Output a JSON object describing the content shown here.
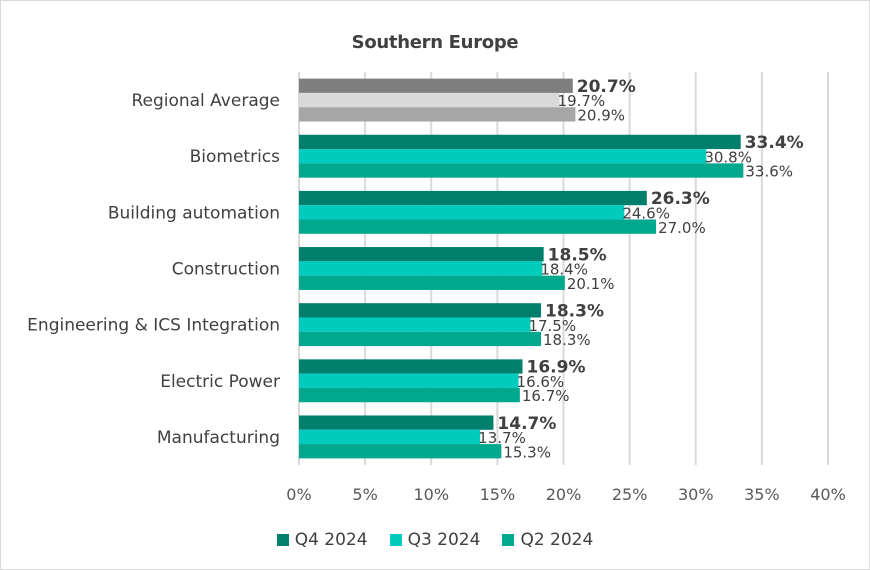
{
  "chart_data": {
    "type": "bar",
    "orientation": "horizontal",
    "title": "Southern Europe",
    "xlabel": "",
    "ylabel": "",
    "xlim": [
      0,
      40
    ],
    "x_ticks": [
      "0%",
      "5%",
      "10%",
      "15%",
      "20%",
      "25%",
      "30%",
      "35%",
      "40%"
    ],
    "x_tick_values": [
      0,
      5,
      10,
      15,
      20,
      25,
      30,
      35,
      40
    ],
    "grid": true,
    "legend_position": "bottom",
    "categories": [
      "Regional Average",
      "Biometrics",
      "Building automation",
      "Construction",
      "Engineering & ICS Integration",
      "Electric Power",
      "Manufacturing"
    ],
    "series": [
      {
        "name": "Q4 2024",
        "color": "#007F6D",
        "highlight_color": "#7F7F7F",
        "values": [
          20.7,
          33.4,
          26.3,
          18.5,
          18.3,
          16.9,
          14.7
        ],
        "labels": [
          "20.7%",
          "33.4%",
          "26.3%",
          "18.5%",
          "18.3%",
          "16.9%",
          "14.7%"
        ]
      },
      {
        "name": "Q3 2024",
        "color": "#00CCBE",
        "highlight_color": "#D9D9D9",
        "values": [
          19.7,
          30.8,
          24.6,
          18.4,
          17.5,
          16.6,
          13.7
        ],
        "labels": [
          "19.7%",
          "30.8%",
          "24.6%",
          "18.4%",
          "17.5%",
          "16.6%",
          "13.7%"
        ]
      },
      {
        "name": "Q2 2024",
        "color": "#00A88E",
        "highlight_color": "#A6A6A6",
        "values": [
          20.9,
          33.6,
          27.0,
          20.1,
          18.3,
          16.7,
          15.3
        ],
        "labels": [
          "20.9%",
          "33.6%",
          "27.0%",
          "20.1%",
          "18.3%",
          "16.7%",
          "15.3%"
        ]
      }
    ],
    "highlighted_category": "Regional Average"
  },
  "legend": {
    "items": [
      {
        "label": "Q4 2024",
        "color": "#007F6D"
      },
      {
        "label": "Q3 2024",
        "color": "#00CCBE"
      },
      {
        "label": "Q2 2024",
        "color": "#00A88E"
      }
    ]
  }
}
